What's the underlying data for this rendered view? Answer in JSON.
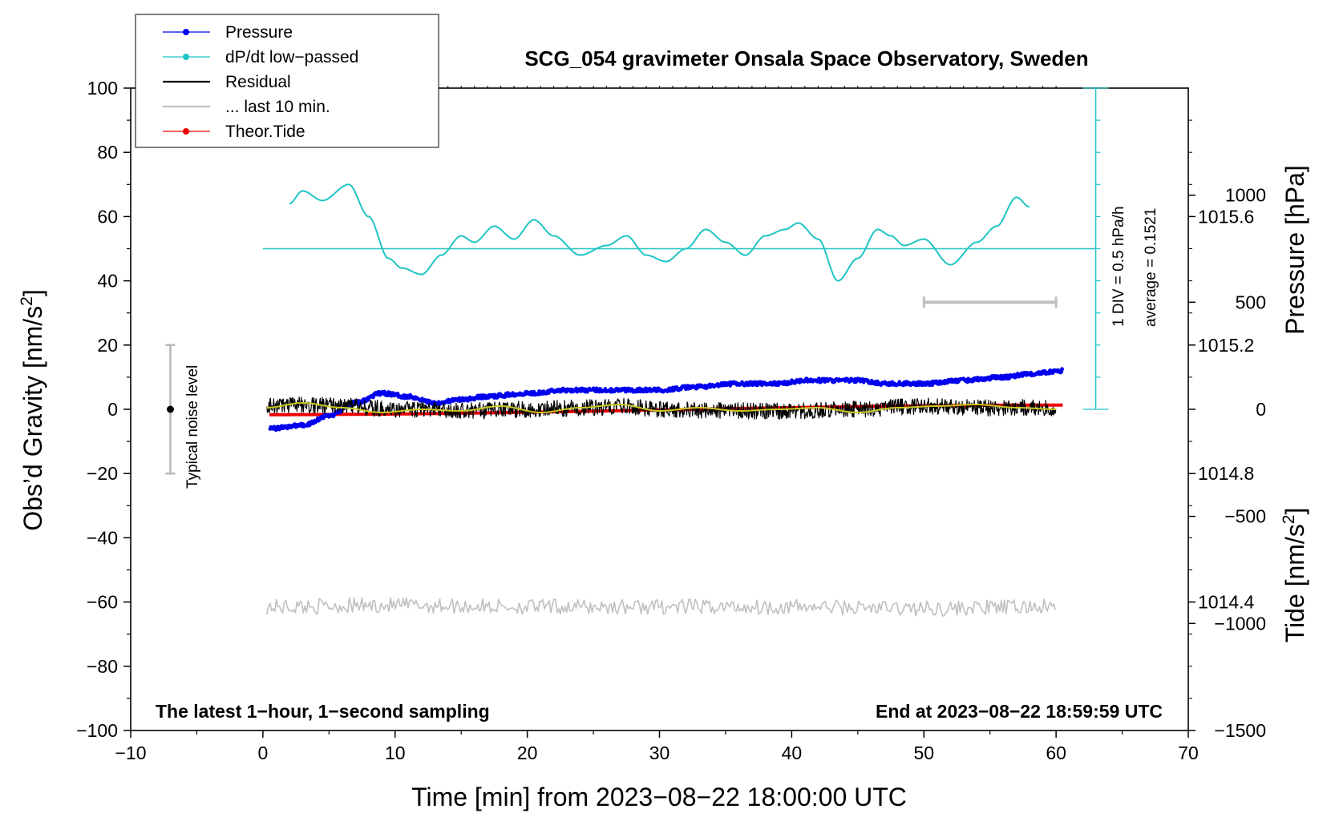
{
  "chart_data": {
    "type": "line",
    "title": "SCG_054 gravimeter Onsala Space Observatory, Sweden",
    "xlabel": "Time [min] from 2023−08−22 18:00:00 UTC",
    "ylabel_left": "Obs’d Gravity [nm/s²]",
    "ylabel_left_parts": {
      "main": "Obs’d Gravity [nm/s",
      "sup": "2",
      "end": "]"
    },
    "ylabel_right_pressure": "Pressure [hPa]",
    "ylabel_right_tide": "Tide [nm/s²]",
    "ylabel_right_tide_parts": {
      "main": "Tide [nm/s",
      "sup": "2",
      "end": "]"
    },
    "xlim": [
      -10,
      70
    ],
    "ylim_left": [
      -100,
      100
    ],
    "pressure_range": [
      1014.0,
      1016.0
    ],
    "tide_range": [
      -1500,
      1500
    ],
    "x_ticks": [
      "−10",
      "0",
      "10",
      "20",
      "30",
      "40",
      "50",
      "60",
      "70"
    ],
    "x_tick_values": [
      -10,
      0,
      10,
      20,
      30,
      40,
      50,
      60,
      70
    ],
    "y_left_ticks": [
      "−100",
      "−80",
      "−60",
      "−40",
      "−20",
      "0",
      "20",
      "40",
      "60",
      "80",
      "100"
    ],
    "y_left_tick_values": [
      -100,
      -80,
      -60,
      -40,
      -20,
      0,
      20,
      40,
      60,
      80,
      100
    ],
    "pressure_ticks": [
      "1014.4",
      "1014.8",
      "1015.2",
      "1015.6"
    ],
    "pressure_tick_values": [
      1014.4,
      1014.8,
      1015.2,
      1015.6
    ],
    "tide_ticks": [
      "−1500",
      "−1000",
      "−500",
      "0",
      "500",
      "1000"
    ],
    "tide_tick_values": [
      -1500,
      -1000,
      -500,
      0,
      500,
      1000
    ],
    "legend": [
      {
        "label": "Pressure",
        "color": "#0000ee",
        "marker": true
      },
      {
        "label": "dP/dt low−passed",
        "color": "#20c4c4",
        "marker": true
      },
      {
        "label": "Residual",
        "color": "#000000",
        "marker": false
      },
      {
        "label": "... last 10 min.",
        "color": "#c0c0c0",
        "marker": false
      },
      {
        "label": "Theor.Tide",
        "color": "#ee0000",
        "marker": true
      }
    ],
    "series": [
      {
        "name": "Pressure",
        "axis": "pressure",
        "color": "#0000ee",
        "x": [
          0.5,
          3,
          5,
          7,
          9,
          11,
          13,
          15,
          17,
          20,
          23,
          26,
          30,
          33,
          36,
          39,
          41,
          43,
          45,
          47,
          50,
          53,
          56,
          58,
          60.5
        ],
        "y": [
          1014.94,
          1014.95,
          1014.98,
          1015.02,
          1015.05,
          1015.04,
          1015.02,
          1015.03,
          1015.04,
          1015.05,
          1015.06,
          1015.06,
          1015.06,
          1015.07,
          1015.08,
          1015.08,
          1015.09,
          1015.09,
          1015.09,
          1015.08,
          1015.08,
          1015.09,
          1015.1,
          1015.11,
          1015.12
        ]
      },
      {
        "name": "dP/dt low−passed",
        "axis": "left",
        "color": "#20c4c4",
        "x": [
          2,
          3,
          4.5,
          6.5,
          8,
          9.5,
          10.5,
          12,
          13.5,
          15,
          16,
          17.5,
          19,
          20.5,
          22,
          24,
          26,
          27.5,
          29,
          30.5,
          32,
          33.5,
          35,
          36.5,
          38,
          39.5,
          40.5,
          42,
          43.5,
          45,
          46.5,
          47.5,
          48.5,
          50,
          52,
          54,
          55.5,
          57,
          58
        ],
        "y": [
          64,
          68,
          65,
          70,
          60,
          47,
          44,
          42,
          48,
          54,
          52,
          57,
          53,
          59,
          54,
          48,
          51,
          54,
          48,
          46,
          50,
          56,
          52,
          48,
          54,
          56,
          58,
          53,
          40,
          47,
          56,
          54,
          51,
          53,
          45,
          52,
          57,
          66,
          63
        ]
      },
      {
        "name": "Residual",
        "axis": "left",
        "color": "#000000",
        "noise": 2.6,
        "x": [
          0.3,
          5,
          10,
          15,
          20,
          25,
          27,
          30,
          35,
          40,
          45,
          50,
          55,
          60
        ],
        "y": [
          1,
          1.5,
          0,
          -0.5,
          0,
          0.5,
          1,
          0,
          -0.5,
          -0.5,
          0,
          1,
          0.5,
          0.5
        ]
      },
      {
        "name": "Residual smoothed",
        "axis": "left",
        "color": "#c8c820",
        "x": [
          0.3,
          3,
          6,
          9,
          12,
          15,
          18,
          21,
          24,
          27,
          30,
          33,
          36,
          39,
          42,
          45,
          48,
          51,
          54,
          57,
          60
        ],
        "y": [
          0.5,
          2,
          0.5,
          -1,
          0,
          -0.5,
          1,
          -1,
          0.5,
          1.5,
          -0.5,
          0.5,
          -0.5,
          0,
          0.5,
          -1,
          0.5,
          1,
          1.5,
          0.5,
          0
        ]
      },
      {
        "name": "... last 10 min.",
        "axis": "left",
        "color": "#c0c0c0",
        "noise": 2.4,
        "x": [
          0.3,
          10,
          20,
          30,
          40,
          50,
          60
        ],
        "y": [
          -61.5,
          -61,
          -61.5,
          -61.5,
          -61.5,
          -62,
          -61.5
        ]
      },
      {
        "name": "Theor.Tide",
        "axis": "tide",
        "color": "#ee0000",
        "x": [
          0.5,
          60.5
        ],
        "y": [
          -25,
          20
        ]
      }
    ],
    "pressure_average_line": {
      "value": 50,
      "axis": "left",
      "x": [
        0,
        63
      ]
    },
    "dpdt_scale_bar": {
      "x": 63,
      "y_range": [
        0,
        100
      ],
      "label": "1 DIV = 0.5 hPa/h",
      "average_label": "average = 0.1521"
    },
    "noise_bar": {
      "x": -7,
      "y_range": [
        -20,
        20
      ],
      "label": "Typical noise level"
    },
    "last10_bar": {
      "x_range": [
        50,
        60
      ],
      "tide_value": 500
    },
    "footer_left": "The latest 1−hour, 1−second sampling",
    "footer_right": "End at 2023−08−22 18:59:59 UTC",
    "grid": false,
    "legend_position": "top-left"
  }
}
